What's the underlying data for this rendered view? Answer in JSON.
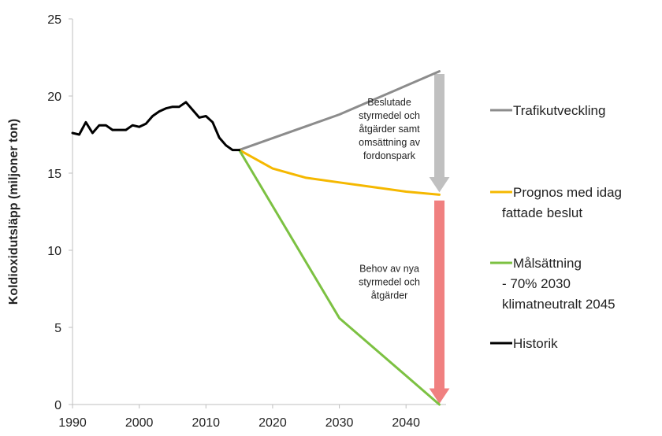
{
  "chart_data": {
    "type": "line",
    "ylabel": "Koldioxidutsläpp (miljoner ton)",
    "xlabel": "",
    "xlim": [
      1990,
      2046
    ],
    "ylim": [
      0,
      25
    ],
    "x_ticks": [
      "1990",
      "2000",
      "2010",
      "2020",
      "2030",
      "2040"
    ],
    "x_tick_values": [
      1990,
      2000,
      2010,
      2020,
      2030,
      2040
    ],
    "y_ticks": [
      "0",
      "5",
      "10",
      "15",
      "20",
      "25"
    ],
    "y_tick_values": [
      0,
      5,
      10,
      15,
      20,
      25
    ],
    "grid": false,
    "legend_position": "right",
    "series": [
      {
        "name": "Trafikutveckling",
        "color": "#8c8c8c",
        "points": [
          [
            2015,
            16.5
          ],
          [
            2030,
            18.8
          ],
          [
            2045,
            21.6
          ]
        ]
      },
      {
        "name": "Prognos med idag fattade beslut",
        "legend_lines": [
          "Prognos med idag",
          "fattade beslut"
        ],
        "color": "#f5b800",
        "points": [
          [
            2015,
            16.5
          ],
          [
            2020,
            15.3
          ],
          [
            2025,
            14.7
          ],
          [
            2030,
            14.4
          ],
          [
            2035,
            14.1
          ],
          [
            2040,
            13.8
          ],
          [
            2045,
            13.6
          ]
        ]
      },
      {
        "name": "Målsättning - 70% 2030 klimatneutralt 2045",
        "legend_lines": [
          "Målsättning",
          "- 70% 2030",
          "klimatneutralt 2045"
        ],
        "color": "#7cc142",
        "points": [
          [
            2015,
            16.5
          ],
          [
            2030,
            5.6
          ],
          [
            2045,
            0
          ]
        ]
      },
      {
        "name": "Historik",
        "color": "#000000",
        "points": [
          [
            1990,
            17.6
          ],
          [
            1991,
            17.5
          ],
          [
            1992,
            18.3
          ],
          [
            1993,
            17.6
          ],
          [
            1994,
            18.1
          ],
          [
            1995,
            18.1
          ],
          [
            1996,
            17.8
          ],
          [
            1997,
            17.8
          ],
          [
            1998,
            17.8
          ],
          [
            1999,
            18.1
          ],
          [
            2000,
            18.0
          ],
          [
            2001,
            18.2
          ],
          [
            2002,
            18.7
          ],
          [
            2003,
            19.0
          ],
          [
            2004,
            19.2
          ],
          [
            2005,
            19.3
          ],
          [
            2006,
            19.3
          ],
          [
            2007,
            19.6
          ],
          [
            2008,
            19.1
          ],
          [
            2009,
            18.6
          ],
          [
            2010,
            18.7
          ],
          [
            2011,
            18.3
          ],
          [
            2012,
            17.3
          ],
          [
            2013,
            16.8
          ],
          [
            2014,
            16.5
          ],
          [
            2015,
            16.5
          ]
        ]
      }
    ],
    "annotations": [
      {
        "id": "beslutade",
        "lines": [
          "Beslutade",
          "styrmedel och",
          "åtgärder samt",
          "omsättning av",
          "fordonspark"
        ],
        "x": 2037.5,
        "y_top": 19.4,
        "arrow": {
          "x": 2045,
          "from": 21.4,
          "to": 13.8,
          "color": "#c0c0c0"
        }
      },
      {
        "id": "behov",
        "lines": [
          "Behov av nya",
          "styrmedel och",
          "åtgärder"
        ],
        "x": 2037.5,
        "y_top": 8.6,
        "arrow": {
          "x": 2045,
          "from": 13.2,
          "to": 0.1,
          "color": "#f08080"
        }
      }
    ]
  }
}
